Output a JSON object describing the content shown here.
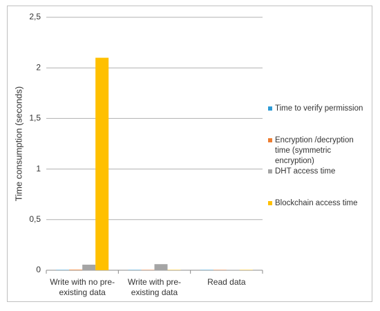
{
  "chart_data": {
    "type": "bar",
    "y_label": "Time consumption (seconds)",
    "categories": [
      "Write with no pre-existing data",
      "Write with pre-existing data",
      "Read data"
    ],
    "series": [
      {
        "name": "Time to verify permission",
        "color": "#2e9bd6",
        "values": [
          0.003,
          0.003,
          0.003
        ]
      },
      {
        "name": "Encryption /decryption time (symmetric encryption)",
        "color": "#ed7d31",
        "values": [
          0.005,
          0.003,
          0.003
        ]
      },
      {
        "name": "DHT access time",
        "color": "#a5a5a5",
        "values": [
          0.055,
          0.06,
          0.003
        ]
      },
      {
        "name": "Blockchain access time",
        "color": "#ffc000",
        "values": [
          2.1,
          0.003,
          0.003
        ]
      }
    ],
    "ylim": [
      0,
      2.5
    ],
    "yticks": [
      0,
      {
        "value": 0.5,
        "label": "0,5"
      },
      1,
      {
        "value": 1.5,
        "label": "1,5"
      },
      2,
      {
        "value": 2.5,
        "label": "2,5"
      }
    ],
    "grid": true
  }
}
